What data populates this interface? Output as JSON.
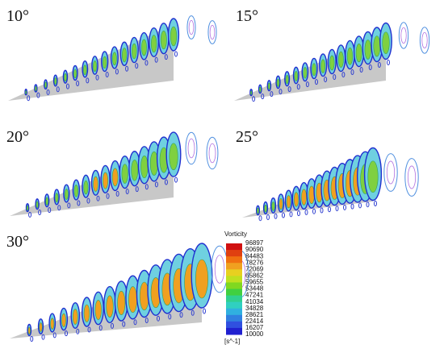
{
  "panels": [
    {
      "label": "10°"
    },
    {
      "label": "15°"
    },
    {
      "label": "20°"
    },
    {
      "label": "25°"
    },
    {
      "label": "30°"
    }
  ],
  "colorbar": {
    "title": "Vorticity",
    "ticks": [
      96897,
      90690,
      84483,
      78276,
      72069,
      65862,
      59655,
      53448,
      47241,
      41034,
      34828,
      28621,
      22414,
      16207,
      10000
    ],
    "unit": "[s^-1]"
  }
}
